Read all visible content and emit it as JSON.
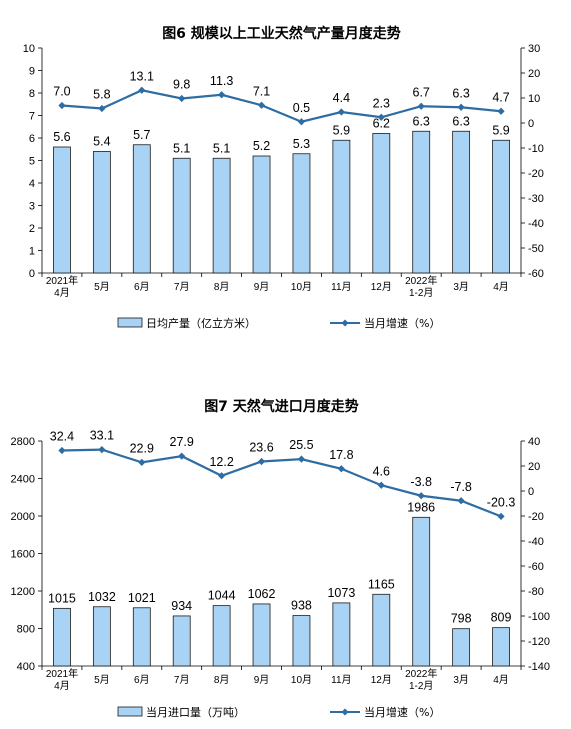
{
  "chart_data": [
    {
      "type": "bar",
      "title": "图6  规模以上工业天然气产量月度走势",
      "categories": [
        "2021年\n4月",
        "5月",
        "6月",
        "7月",
        "8月",
        "9月",
        "10月",
        "11月",
        "12月",
        "2022年\n1-2月",
        "3月",
        "4月"
      ],
      "y_ticks": [
        "0",
        "1",
        "2",
        "3",
        "4",
        "5",
        "6",
        "7",
        "8",
        "9",
        "10"
      ],
      "y2_ticks": [
        "-60",
        "-50",
        "-40",
        "-30",
        "-20",
        "-10",
        "0",
        "10",
        "20",
        "30"
      ],
      "ylim": [
        0,
        10
      ],
      "y2lim": [
        -60,
        30
      ],
      "legend_position": "bottom",
      "series": [
        {
          "name": "日均产量（亿立方米）",
          "type": "bar",
          "axis": "left",
          "values": [
            5.6,
            5.4,
            5.7,
            5.1,
            5.1,
            5.2,
            5.3,
            5.9,
            6.2,
            6.3,
            6.3,
            5.9
          ],
          "labels": [
            "5.6",
            "5.4",
            "5.7",
            "5.1",
            "5.1",
            "5.2",
            "5.3",
            "5.9",
            "6.2",
            "6.3",
            "6.3",
            "5.9"
          ]
        },
        {
          "name": "当月增速（%）",
          "type": "line",
          "axis": "right",
          "values": [
            7.0,
            5.8,
            13.1,
            9.8,
            11.3,
            7.1,
            0.5,
            4.4,
            2.3,
            6.7,
            6.3,
            4.7
          ],
          "labels": [
            "7.0",
            "5.8",
            "13.1",
            "9.8",
            "11.3",
            "7.1",
            "0.5",
            "4.4",
            "2.3",
            "6.7",
            "6.3",
            "4.7"
          ]
        }
      ],
      "colors": {
        "bar": "#a9d3f5",
        "line": "#2e6da4"
      }
    },
    {
      "type": "bar",
      "title": "图7  天然气进口月度走势",
      "categories": [
        "2021年\n4月",
        "5月",
        "6月",
        "7月",
        "8月",
        "9月",
        "10月",
        "11月",
        "12月",
        "2022年\n1-2月",
        "3月",
        "4月"
      ],
      "y_ticks": [
        "400",
        "800",
        "1200",
        "1600",
        "2000",
        "2400",
        "2800"
      ],
      "y2_ticks": [
        "-140",
        "-120",
        "-100",
        "-80",
        "-60",
        "-40",
        "-20",
        "0",
        "20",
        "40"
      ],
      "ylim": [
        400,
        2800
      ],
      "y2lim": [
        -140,
        40
      ],
      "legend_position": "bottom",
      "series": [
        {
          "name": "当月进口量（万吨）",
          "type": "bar",
          "axis": "left",
          "values": [
            1015,
            1032,
            1021,
            934,
            1044,
            1062,
            938,
            1073,
            1165,
            1986,
            798,
            809
          ],
          "labels": [
            "1015",
            "1032",
            "1021",
            "934",
            "1044",
            "1062",
            "938",
            "1073",
            "1165",
            "1986",
            "798",
            "809"
          ]
        },
        {
          "name": "当月增速（%）",
          "type": "line",
          "axis": "right",
          "values": [
            32.4,
            33.1,
            22.9,
            27.9,
            12.2,
            23.6,
            25.5,
            17.8,
            4.6,
            -3.8,
            -7.8,
            -20.3
          ],
          "labels": [
            "32.4",
            "33.1",
            "22.9",
            "27.9",
            "12.2",
            "23.6",
            "25.5",
            "17.8",
            "4.6",
            "-3.8",
            "-7.8",
            "-20.3"
          ]
        }
      ],
      "colors": {
        "bar": "#a9d3f5",
        "line": "#2e6da4"
      }
    }
  ]
}
